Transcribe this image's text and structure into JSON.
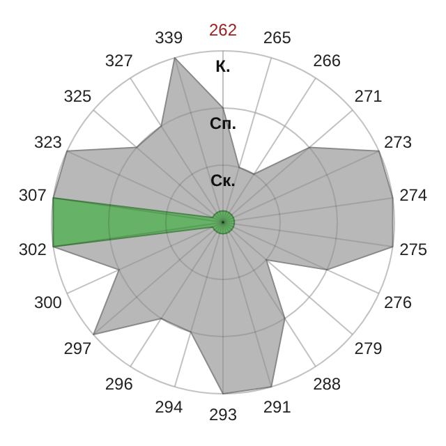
{
  "chart_data": {
    "type": "radar",
    "categories": [
      "262",
      "265",
      "266",
      "271",
      "273",
      "274",
      "275",
      "276",
      "279",
      "288",
      "291",
      "293",
      "294",
      "296",
      "297",
      "300",
      "302",
      "307",
      "323",
      "325",
      "327",
      "339"
    ],
    "ylim": [
      0,
      3
    ],
    "yticks": [
      {
        "value": 1,
        "label": "Ск."
      },
      {
        "value": 2,
        "label": "Сп."
      },
      {
        "value": 3,
        "label": "К."
      }
    ],
    "grid": true,
    "series": [
      {
        "color": "#b8b8b8",
        "values": [
          2,
          1,
          1,
          2,
          3,
          3,
          3,
          2,
          1,
          2,
          3,
          3,
          2,
          2,
          3,
          2,
          3,
          3,
          3,
          2,
          2,
          3
        ]
      },
      {
        "color": "#66b266",
        "values": [
          0.2,
          0.2,
          0.2,
          0.2,
          0.2,
          0.2,
          0.2,
          0.2,
          0.2,
          0.2,
          0.2,
          0.2,
          0.2,
          0.2,
          0.2,
          0.2,
          3,
          3,
          0.2,
          0.2,
          0.2,
          0.2
        ]
      }
    ]
  }
}
